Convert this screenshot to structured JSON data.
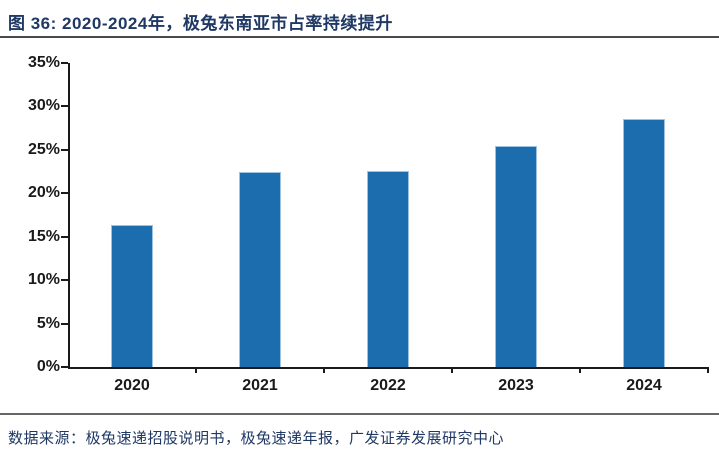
{
  "figure": {
    "title": "图 36: 2020-2024年，极兔东南亚市占率持续提升",
    "source": "数据来源：极兔速递招股说明书，极兔速递年报，广发证券发展研究中心"
  },
  "chart_data": {
    "type": "bar",
    "categories": [
      "2020",
      "2021",
      "2022",
      "2023",
      "2024"
    ],
    "values": [
      16.4,
      22.4,
      22.6,
      25.4,
      28.6
    ],
    "title": "图 36: 2020-2024年，极兔东南亚市占率持续提升",
    "xlabel": "",
    "ylabel": "",
    "ylim": [
      0,
      35
    ],
    "ytick_step": 5,
    "ytick_labels": [
      "0%",
      "5%",
      "10%",
      "15%",
      "20%",
      "25%",
      "30%",
      "35%"
    ],
    "grid": false,
    "legend": "none",
    "bar_color": "#1C6DAD"
  },
  "colors": {
    "bar": "#1C6DAD",
    "title_text": "#1F3864",
    "axis": "#1a1a1a",
    "rule": "#666666"
  }
}
